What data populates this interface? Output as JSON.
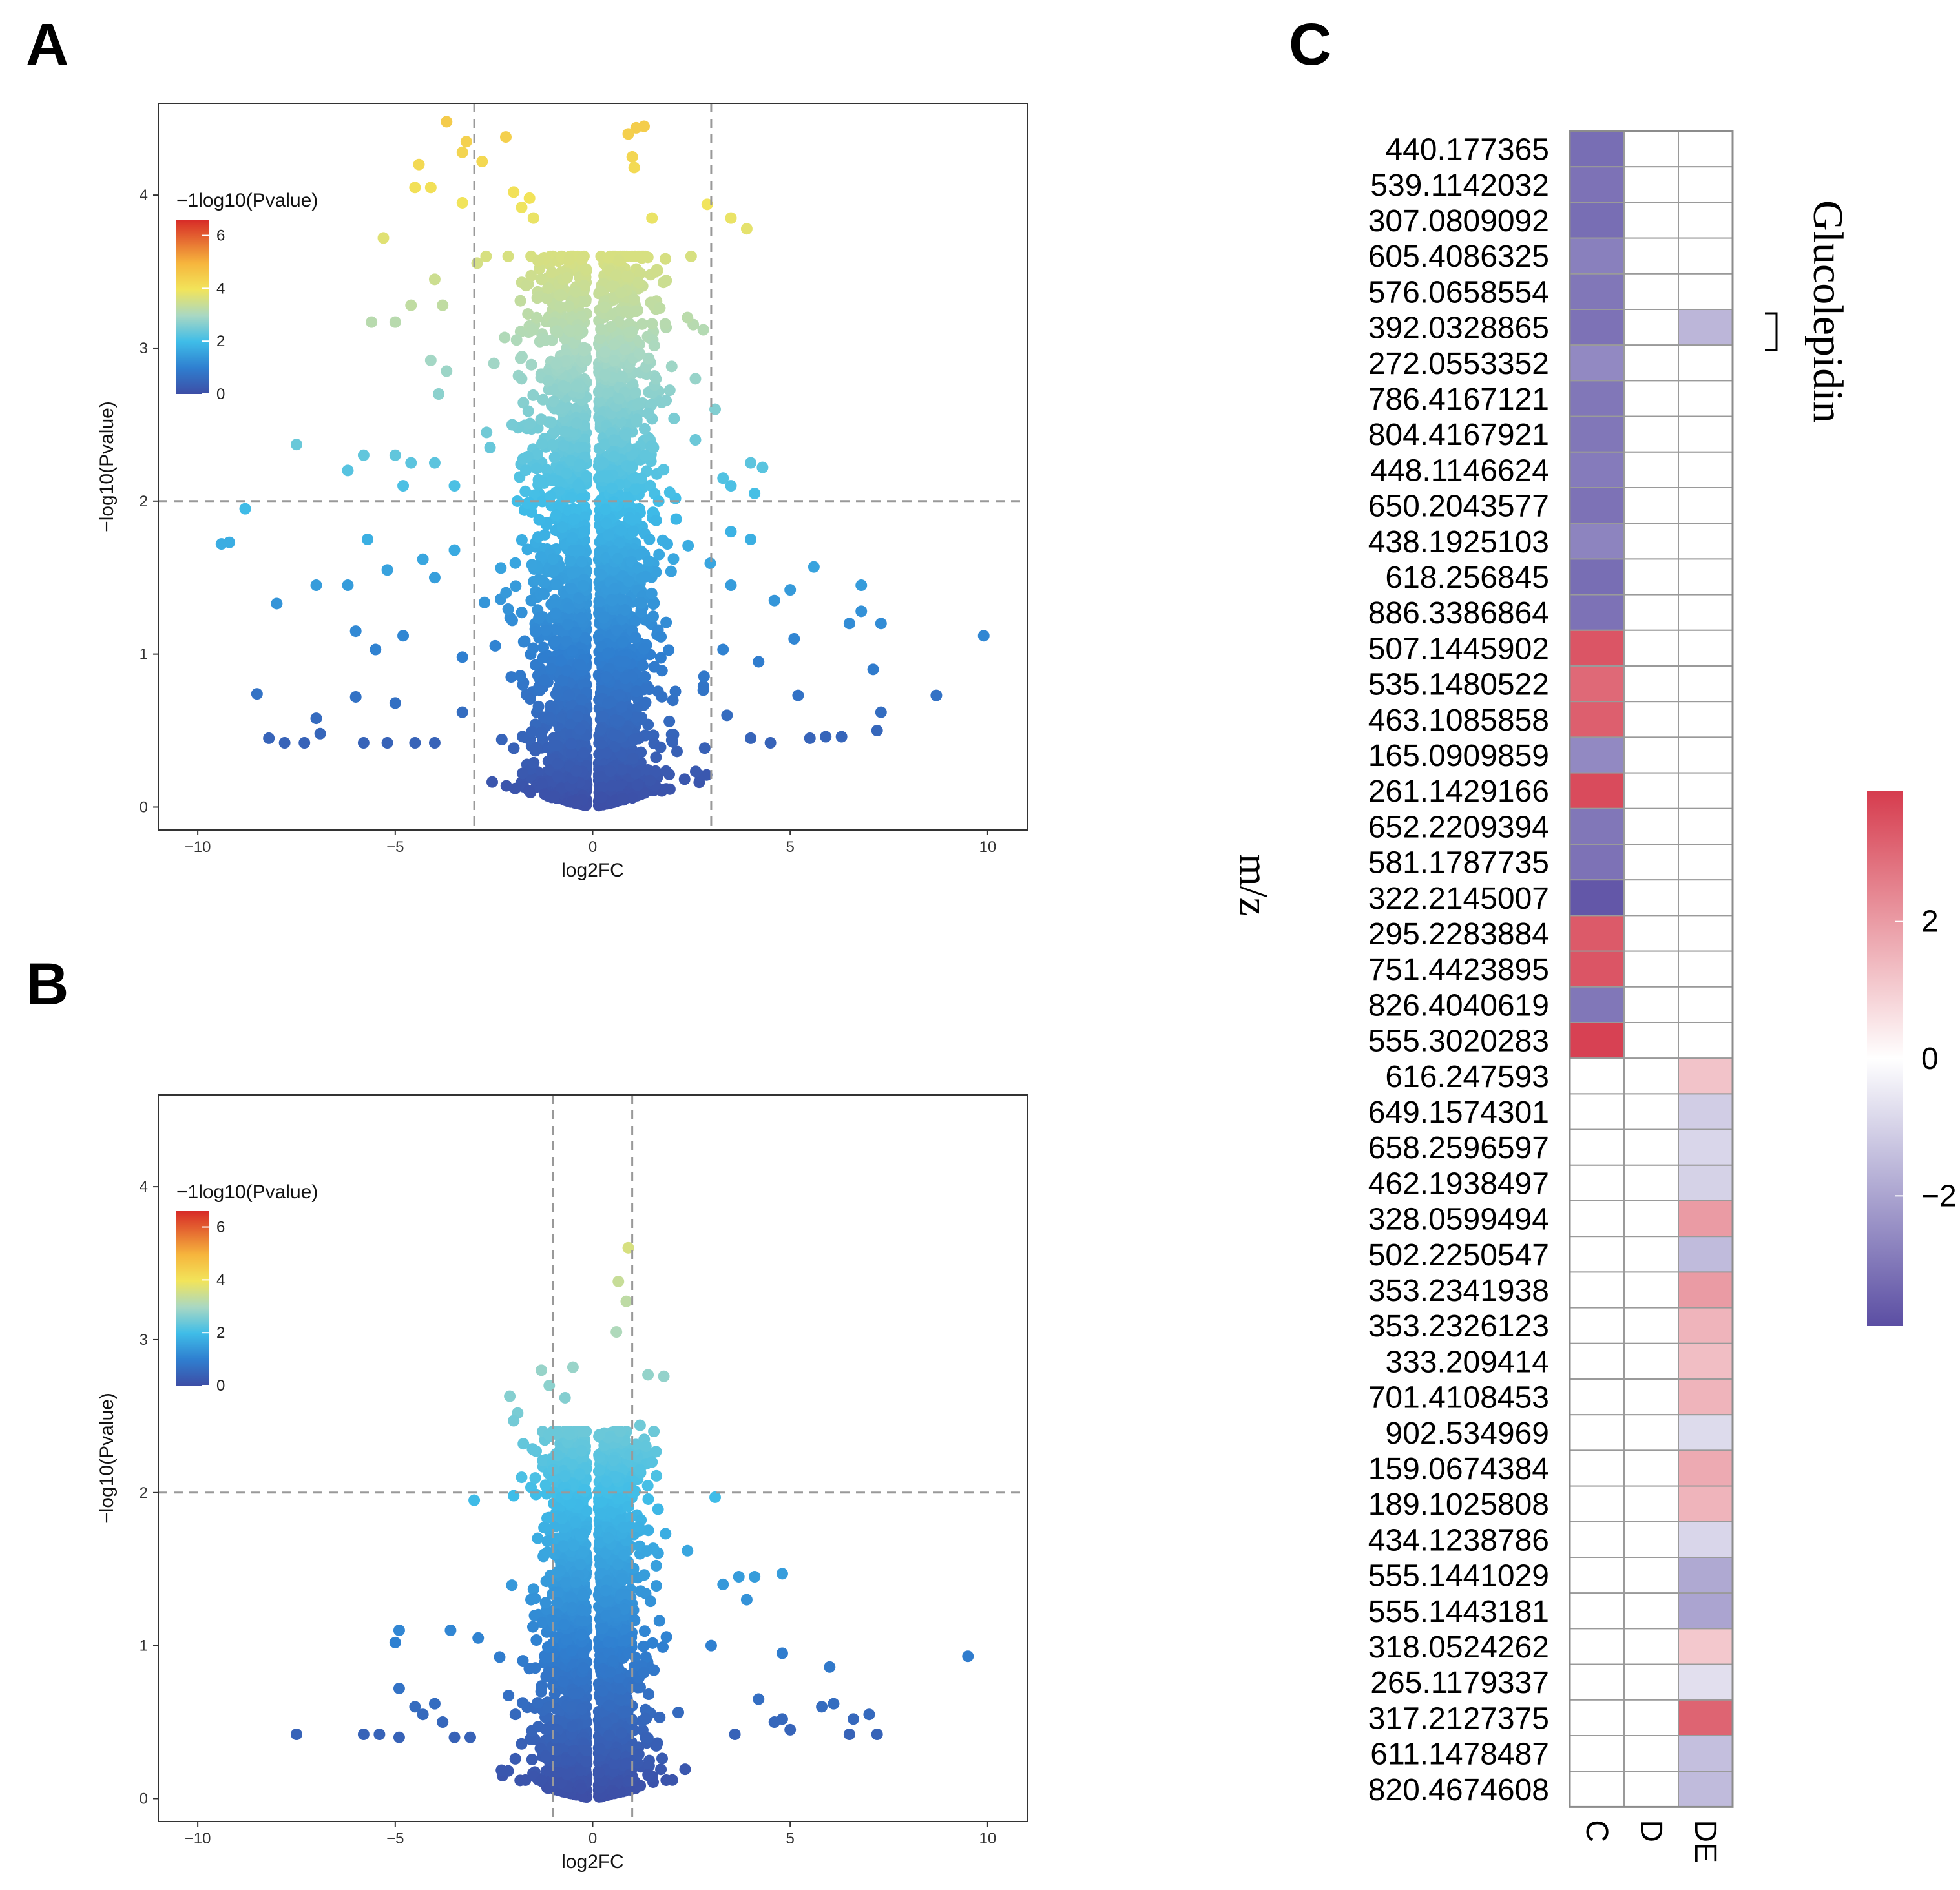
{
  "panels": {
    "a": "A",
    "b": "B",
    "c": "C"
  },
  "chart_data": [
    {
      "id": "A",
      "type": "scatter",
      "xlabel": "log2FC",
      "ylabel": "−log10(Pvalue)",
      "xlim": [
        -11,
        11
      ],
      "ylim": [
        -0.15,
        4.6
      ],
      "xticks": [
        -10,
        -5,
        0,
        5,
        10
      ],
      "yticks": [
        0,
        1,
        2,
        3,
        4
      ],
      "xtick_labels": [
        "−10",
        "−5",
        "0",
        "5",
        "10"
      ],
      "ytick_labels": [
        "0",
        "1",
        "2",
        "3",
        "4"
      ],
      "vlines": [
        -3,
        3
      ],
      "hline": 2,
      "legend": {
        "title": "−1log10(Pvalue)",
        "ticks": [
          0,
          2,
          4,
          6
        ],
        "tick_labels": [
          "0",
          "2",
          "4",
          "6"
        ],
        "range": [
          0,
          6.6
        ]
      },
      "colors": [
        "#3c4ea6",
        "#2f8fd6",
        "#3dbbe8",
        "#9fd1b8",
        "#e6e35a",
        "#f6d233",
        "#f4a43a",
        "#d73027"
      ],
      "points": [
        [
          -3.7,
          4.48
        ],
        [
          -3.2,
          4.35
        ],
        [
          -3.3,
          4.28
        ],
        [
          -2.8,
          4.22
        ],
        [
          -2.2,
          4.38
        ],
        [
          1.1,
          4.44
        ],
        [
          1.3,
          4.45
        ],
        [
          0.9,
          4.4
        ],
        [
          1.0,
          4.25
        ],
        [
          1.05,
          4.18
        ],
        [
          -4.4,
          4.2
        ],
        [
          -4.5,
          4.05
        ],
        [
          -4.1,
          4.05
        ],
        [
          -3.3,
          3.95
        ],
        [
          -2.0,
          4.02
        ],
        [
          -1.6,
          3.98
        ],
        [
          -1.8,
          3.92
        ],
        [
          -1.5,
          3.85
        ],
        [
          1.5,
          3.85
        ],
        [
          2.9,
          3.94
        ],
        [
          3.5,
          3.85
        ],
        [
          3.9,
          3.78
        ],
        [
          -5.3,
          3.72
        ],
        [
          -4.0,
          3.45
        ],
        [
          -5.0,
          3.17
        ],
        [
          -4.6,
          3.28
        ],
        [
          -5.6,
          3.17
        ],
        [
          -3.8,
          3.28
        ],
        [
          -2.7,
          3.6
        ],
        [
          -1.3,
          3.45
        ],
        [
          1.0,
          3.6
        ],
        [
          1.6,
          3.5
        ],
        [
          2.4,
          3.2
        ],
        [
          2.8,
          3.12
        ],
        [
          -4.1,
          2.92
        ],
        [
          -3.7,
          2.85
        ],
        [
          -3.9,
          2.7
        ],
        [
          -2.5,
          2.9
        ],
        [
          -1.8,
          2.8
        ],
        [
          2.0,
          2.88
        ],
        [
          2.6,
          2.8
        ],
        [
          3.1,
          2.6
        ],
        [
          -5.0,
          2.3
        ],
        [
          -4.6,
          2.25
        ],
        [
          -5.8,
          2.3
        ],
        [
          -6.2,
          2.2
        ],
        [
          -4.0,
          2.25
        ],
        [
          -2.6,
          2.35
        ],
        [
          2.6,
          2.4
        ],
        [
          4.0,
          2.25
        ],
        [
          4.3,
          2.22
        ],
        [
          -4.8,
          2.1
        ],
        [
          -3.5,
          2.1
        ],
        [
          3.5,
          2.1
        ],
        [
          4.1,
          2.05
        ],
        [
          3.3,
          2.15
        ],
        [
          -7.5,
          2.37
        ],
        [
          -8.8,
          1.95
        ],
        [
          -9.4,
          1.72
        ],
        [
          -9.2,
          1.73
        ],
        [
          -5.7,
          1.75
        ],
        [
          -4.3,
          1.62
        ],
        [
          -3.5,
          1.68
        ],
        [
          3.5,
          1.8
        ],
        [
          5.6,
          1.57
        ],
        [
          4.0,
          1.75
        ],
        [
          -8.0,
          1.33
        ],
        [
          -7.0,
          1.45
        ],
        [
          -6.2,
          1.45
        ],
        [
          -5.2,
          1.55
        ],
        [
          -4.0,
          1.5
        ],
        [
          3.5,
          1.45
        ],
        [
          5.0,
          1.42
        ],
        [
          4.6,
          1.35
        ],
        [
          6.8,
          1.45
        ],
        [
          6.5,
          1.2
        ],
        [
          7.3,
          1.2
        ],
        [
          6.8,
          1.28
        ],
        [
          9.9,
          1.12
        ],
        [
          -6.0,
          1.15
        ],
        [
          -5.5,
          1.03
        ],
        [
          -4.8,
          1.12
        ],
        [
          -3.3,
          0.98
        ],
        [
          3.3,
          1.03
        ],
        [
          4.2,
          0.95
        ],
        [
          5.1,
          1.1
        ],
        [
          7.1,
          0.9
        ],
        [
          -8.5,
          0.74
        ],
        [
          -7.0,
          0.58
        ],
        [
          -6.0,
          0.72
        ],
        [
          -5.0,
          0.68
        ],
        [
          -3.3,
          0.62
        ],
        [
          3.4,
          0.6
        ],
        [
          5.2,
          0.73
        ],
        [
          7.3,
          0.62
        ],
        [
          8.7,
          0.73
        ],
        [
          -8.2,
          0.45
        ],
        [
          -7.8,
          0.42
        ],
        [
          -7.3,
          0.42
        ],
        [
          -6.9,
          0.48
        ],
        [
          -5.8,
          0.42
        ],
        [
          -5.2,
          0.42
        ],
        [
          -4.5,
          0.42
        ],
        [
          -4.0,
          0.42
        ],
        [
          4.0,
          0.45
        ],
        [
          4.5,
          0.42
        ],
        [
          5.5,
          0.45
        ],
        [
          5.9,
          0.46
        ],
        [
          6.3,
          0.46
        ],
        [
          7.2,
          0.5
        ]
      ],
      "core_density_note": "dense cloud of several thousand points around log2FC 0, max spread ~±4 at p-values up to ~3.5"
    },
    {
      "id": "B",
      "type": "scatter",
      "xlabel": "log2FC",
      "ylabel": "−log10(Pvalue)",
      "xlim": [
        -11,
        11
      ],
      "ylim": [
        -0.15,
        4.6
      ],
      "xticks": [
        -10,
        -5,
        0,
        5,
        10
      ],
      "yticks": [
        0,
        1,
        2,
        3,
        4
      ],
      "xtick_labels": [
        "−10",
        "−5",
        "0",
        "5",
        "10"
      ],
      "ytick_labels": [
        "0",
        "1",
        "2",
        "3",
        "4"
      ],
      "vlines": [
        -1,
        1
      ],
      "hline": 2,
      "legend": {
        "title": "−1log10(Pvalue)",
        "ticks": [
          0,
          2,
          4,
          6
        ],
        "tick_labels": [
          "0",
          "2",
          "4",
          "6"
        ],
        "range": [
          0,
          6.6
        ]
      },
      "points": [
        [
          0.9,
          3.6
        ],
        [
          0.65,
          3.38
        ],
        [
          0.85,
          3.25
        ],
        [
          0.6,
          3.05
        ],
        [
          -0.5,
          2.82
        ],
        [
          -1.3,
          2.8
        ],
        [
          -1.1,
          2.7
        ],
        [
          -2.1,
          2.63
        ],
        [
          -0.7,
          2.62
        ],
        [
          1.4,
          2.77
        ],
        [
          1.8,
          2.76
        ],
        [
          -1.9,
          2.52
        ],
        [
          -2.0,
          2.47
        ],
        [
          -0.6,
          2.38
        ],
        [
          1.2,
          2.44
        ],
        [
          0.7,
          2.4
        ],
        [
          -1.5,
          2.28
        ],
        [
          1.5,
          2.2
        ],
        [
          -1.8,
          2.1
        ],
        [
          -1.0,
          2.15
        ],
        [
          1.2,
          2.15
        ],
        [
          -3.0,
          1.95
        ],
        [
          -2.0,
          1.98
        ],
        [
          3.1,
          1.97
        ],
        [
          2.4,
          1.62
        ],
        [
          3.3,
          1.4
        ],
        [
          3.7,
          1.45
        ],
        [
          4.8,
          1.47
        ],
        [
          4.1,
          1.45
        ],
        [
          3.9,
          1.3
        ],
        [
          -5.0,
          1.02
        ],
        [
          -4.9,
          1.1
        ],
        [
          -3.6,
          1.1
        ],
        [
          -2.9,
          1.05
        ],
        [
          3.0,
          1.0
        ],
        [
          4.8,
          0.95
        ],
        [
          6.0,
          0.86
        ],
        [
          9.5,
          0.93
        ],
        [
          -4.9,
          0.72
        ],
        [
          -4.5,
          0.6
        ],
        [
          -4.3,
          0.55
        ],
        [
          -4.0,
          0.62
        ],
        [
          -3.8,
          0.5
        ],
        [
          4.2,
          0.65
        ],
        [
          4.8,
          0.52
        ],
        [
          5.8,
          0.6
        ],
        [
          6.1,
          0.62
        ],
        [
          6.6,
          0.52
        ],
        [
          7.0,
          0.55
        ],
        [
          -7.5,
          0.42
        ],
        [
          -5.8,
          0.42
        ],
        [
          -5.4,
          0.42
        ],
        [
          -4.9,
          0.4
        ],
        [
          6.5,
          0.42
        ],
        [
          7.2,
          0.42
        ],
        [
          -3.5,
          0.4
        ],
        [
          -3.1,
          0.4
        ],
        [
          3.6,
          0.42
        ],
        [
          5.0,
          0.45
        ],
        [
          4.6,
          0.5
        ]
      ],
      "core_density_note": "dense cloud around log2FC 0, spread ~±3 at lower p-values"
    },
    {
      "id": "C",
      "type": "heatmap",
      "ylabel": "m/z",
      "columns": [
        "C",
        "D",
        "DE"
      ],
      "annotation": "Glucolepidin",
      "annotation_row": 5,
      "colorbar": {
        "ticks": [
          2,
          0,
          -2
        ],
        "tick_labels": [
          "2",
          "0",
          "−2"
        ],
        "range": [
          -3.9,
          3.9
        ],
        "high": "#d63c4e",
        "mid": "#ffffff",
        "low": "#5b4ea3"
      },
      "rows": [
        "440.177365",
        "539.1142032",
        "307.0809092",
        "605.4086325",
        "576.0658554",
        "392.0328865",
        "272.0553352",
        "786.4167121",
        "804.4167921",
        "448.1146624",
        "650.2043577",
        "438.1925103",
        "618.256845",
        "886.3386864",
        "507.1445902",
        "535.1480522",
        "463.1085858",
        "165.0909859",
        "261.1429166",
        "652.2209394",
        "581.1787735",
        "322.2145007",
        "295.2283884",
        "751.4423895",
        "826.4040619",
        "555.3020283",
        "616.247593",
        "649.1574301",
        "658.2596597",
        "462.1938497",
        "328.0599494",
        "502.2250547",
        "353.2341938",
        "353.2326123",
        "333.209414",
        "701.4108453",
        "902.534969",
        "159.0674384",
        "189.1025808",
        "434.1238786",
        "555.1441029",
        "555.1443181",
        "318.0524262",
        "265.1179337",
        "317.2127375",
        "611.1478487",
        "820.4674608"
      ],
      "values": [
        [
          -3.2,
          0,
          0
        ],
        [
          -3.1,
          0,
          0
        ],
        [
          -3.2,
          0,
          0
        ],
        [
          -2.8,
          0,
          0
        ],
        [
          -3.0,
          0,
          0
        ],
        [
          -3.1,
          0,
          -1.6
        ],
        [
          -2.6,
          0,
          0
        ],
        [
          -3.0,
          0,
          0
        ],
        [
          -3.0,
          0,
          0
        ],
        [
          -2.9,
          0,
          0
        ],
        [
          -3.1,
          0,
          0
        ],
        [
          -2.7,
          0,
          0
        ],
        [
          -3.2,
          0,
          0
        ],
        [
          -3.1,
          0,
          0
        ],
        [
          3.4,
          0,
          0
        ],
        [
          3.0,
          0,
          0
        ],
        [
          3.2,
          0,
          0
        ],
        [
          -2.6,
          0,
          0
        ],
        [
          3.6,
          0,
          0
        ],
        [
          -3.0,
          0,
          0
        ],
        [
          -3.1,
          0,
          0
        ],
        [
          -3.7,
          0,
          0
        ],
        [
          3.3,
          0,
          0
        ],
        [
          3.4,
          0,
          0
        ],
        [
          -3.0,
          0,
          0
        ],
        [
          3.8,
          0,
          0
        ],
        [
          0,
          0,
          1.2
        ],
        [
          0,
          0,
          -1.1
        ],
        [
          0,
          0,
          -0.9
        ],
        [
          0,
          0,
          -1.0
        ],
        [
          0,
          0,
          2.0
        ],
        [
          0,
          0,
          -1.5
        ],
        [
          0,
          0,
          2.0
        ],
        [
          0,
          0,
          1.5
        ],
        [
          0,
          0,
          1.3
        ],
        [
          0,
          0,
          1.5
        ],
        [
          0,
          0,
          -0.8
        ],
        [
          0,
          0,
          1.7
        ],
        [
          0,
          0,
          1.5
        ],
        [
          0,
          0,
          -0.9
        ],
        [
          0,
          0,
          -1.9
        ],
        [
          0,
          0,
          -2.0
        ],
        [
          0,
          0,
          1.1
        ],
        [
          0,
          0,
          -0.7
        ],
        [
          0,
          0,
          3.1
        ],
        [
          0,
          0,
          -1.4
        ],
        [
          0,
          0,
          -1.5
        ]
      ]
    }
  ]
}
